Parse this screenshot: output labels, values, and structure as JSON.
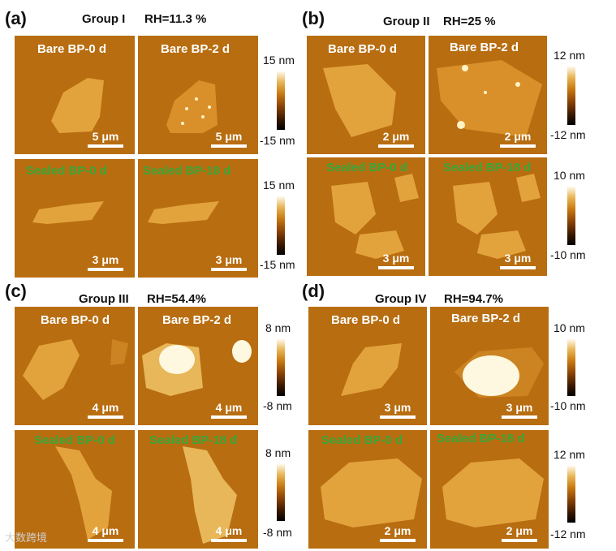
{
  "panels": {
    "a": {
      "letter": "(a)",
      "group": "Group I",
      "rh": "RH=11.3 %",
      "labels": [
        "Bare BP-0 d",
        "Bare BP-2 d",
        "Sealed BP-0 d",
        "Sealed BP-18 d"
      ],
      "scales": [
        "5 μm",
        "5 μm",
        "3 μm",
        "3 μm"
      ],
      "cbar_top": [
        "15 nm",
        "15 nm"
      ],
      "cbar_bottom": [
        "-15 nm",
        "-15 nm"
      ]
    },
    "b": {
      "letter": "(b)",
      "group": "Group II",
      "rh": "RH=25 %",
      "labels": [
        "Bare BP-0 d",
        "Bare BP-2 d",
        "Sealed BP-0 d",
        "Sealed BP-18 d"
      ],
      "scales": [
        "2 μm",
        "2 μm",
        "3 μm",
        "3 μm"
      ],
      "cbar_top": [
        "12 nm",
        "10 nm"
      ],
      "cbar_bottom": [
        "-12 nm",
        "-10 nm"
      ]
    },
    "c": {
      "letter": "(c)",
      "group": "Group III",
      "rh": "RH=54.4%",
      "labels": [
        "Bare BP-0 d",
        "Bare BP-2 d",
        "Sealed BP-0 d",
        "Sealed BP-18 d"
      ],
      "scales": [
        "4 μm",
        "4 μm",
        "4 μm",
        "4 μm"
      ],
      "cbar_top": [
        "8 nm",
        "8 nm"
      ],
      "cbar_bottom": [
        "-8 nm",
        "-8 nm"
      ]
    },
    "d": {
      "letter": "(d)",
      "group": "Group IV",
      "rh": "RH=94.7%",
      "labels": [
        "Bare BP-0 d",
        "Bare BP-2 d",
        "Sealed BP-0 d",
        "Sealed BP-18 d"
      ],
      "scales": [
        "3 μm",
        "3 μm",
        "2 μm",
        "2 μm"
      ],
      "cbar_top": [
        "10 nm",
        "12 nm"
      ],
      "cbar_bottom": [
        "-10 nm",
        "-12 nm"
      ]
    }
  },
  "watermark": "大数跨境",
  "colors": {
    "substrate": "#b86d10",
    "flake": "#e3a33c",
    "sealed_label": "#3aa83a",
    "bare_label": "#ffffff"
  }
}
